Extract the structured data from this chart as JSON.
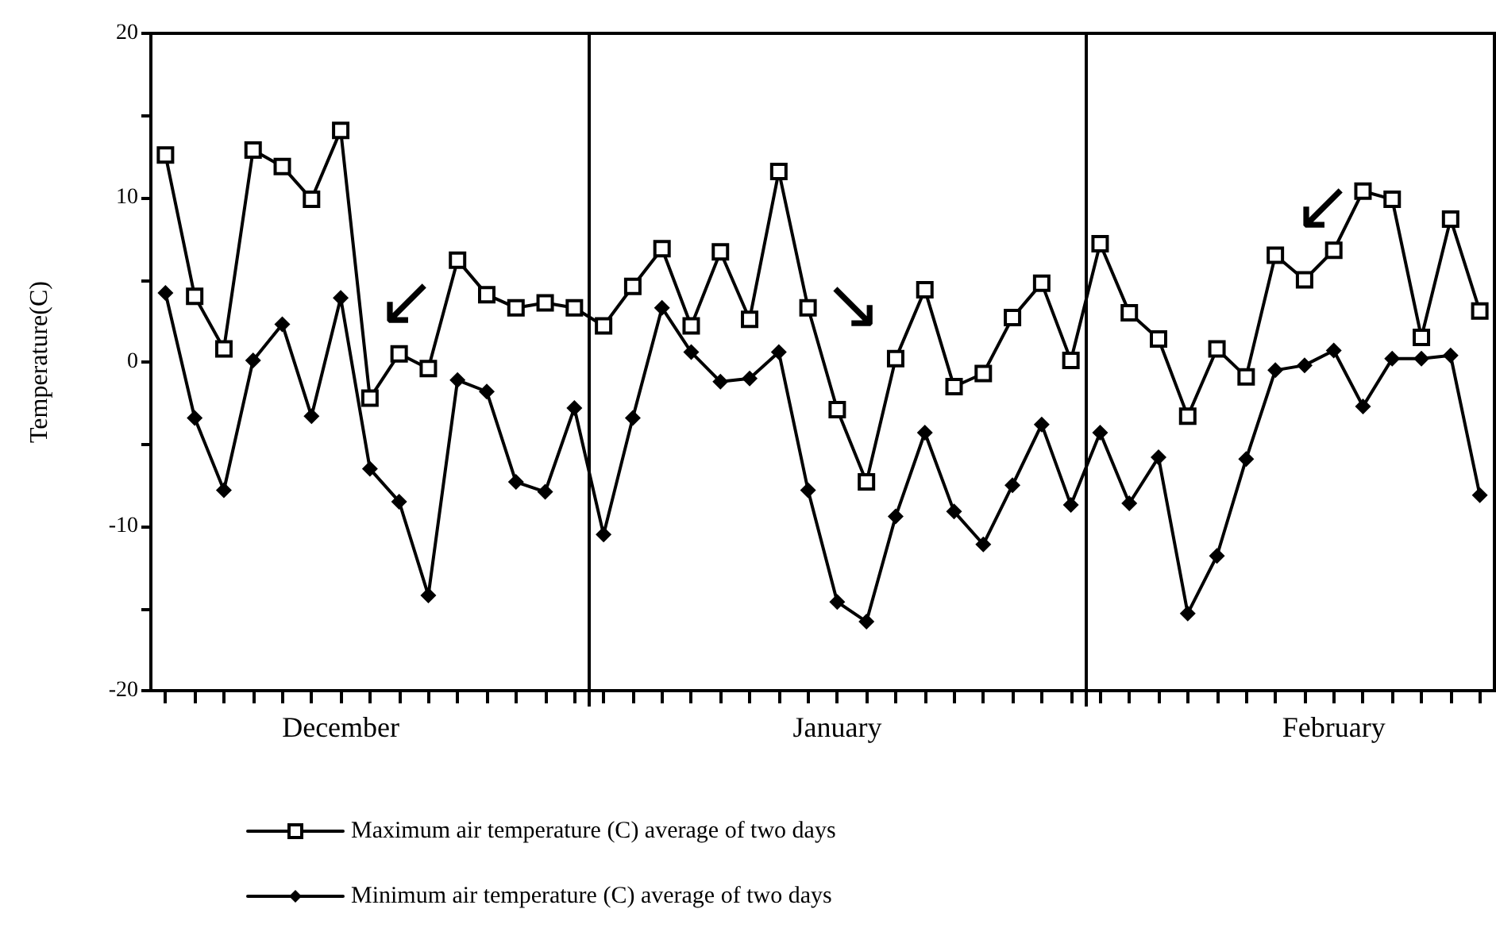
{
  "chart_data": {
    "type": "line",
    "ylabel": "Temperature(C)",
    "categories": [
      null,
      null,
      null,
      null,
      null,
      null,
      "December",
      null,
      null,
      null,
      null,
      null,
      null,
      null,
      null,
      null,
      null,
      null,
      null,
      null,
      null,
      null,
      null,
      "January",
      null,
      null,
      null,
      null,
      null,
      null,
      null,
      null,
      null,
      null,
      null,
      null,
      null,
      null,
      null,
      null,
      "February",
      null,
      null,
      null,
      null,
      null
    ],
    "ylim": [
      -20,
      20
    ],
    "yticks": [
      -20,
      {
        "value": -15,
        "label": null
      },
      -10,
      {
        "value": -5,
        "label": null
      },
      0,
      {
        "value": 5,
        "label": null
      },
      10,
      {
        "value": 15,
        "label": null
      },
      20
    ],
    "series": [
      {
        "name": "Maximum air temperature (C) average of two days",
        "color": "#000000",
        "marker": "square",
        "values": [
          12.6,
          4.0,
          0.8,
          12.9,
          11.9,
          9.9,
          14.1,
          -2.2,
          0.5,
          -0.4,
          6.2,
          4.1,
          3.3,
          3.6,
          3.3,
          2.2,
          4.6,
          6.9,
          2.2,
          6.7,
          2.6,
          11.6,
          3.3,
          -2.9,
          -7.3,
          0.2,
          4.4,
          -1.5,
          -0.7,
          2.7,
          4.8,
          0.1,
          7.2,
          3.0,
          1.4,
          -3.3,
          0.8,
          -0.9,
          6.5,
          5.0,
          6.8,
          10.4,
          9.9,
          1.5,
          8.7,
          3.1
        ]
      },
      {
        "name": "Minimum air temperature (C) average of two days",
        "color": "#000000",
        "marker": "diamond",
        "values": [
          4.2,
          -3.4,
          -7.8,
          0.1,
          2.3,
          -3.3,
          3.9,
          -6.5,
          -8.5,
          -14.2,
          -1.1,
          -1.8,
          -7.3,
          -7.9,
          -2.8,
          -10.5,
          -3.4,
          3.3,
          0.6,
          -1.2,
          -1.0,
          0.6,
          -7.8,
          -14.6,
          -15.8,
          -9.4,
          -4.3,
          -9.1,
          -11.1,
          -7.5,
          -3.8,
          -8.7,
          -4.3,
          -8.6,
          -5.8,
          -15.3,
          -11.8,
          -5.9,
          -0.5,
          -0.2,
          0.7,
          -2.7,
          0.2,
          0.2,
          0.4,
          -8.1
        ]
      }
    ],
    "annotations": [
      "↙",
      "↘",
      "↙"
    ],
    "grid": false,
    "legend": "bottom left",
    "line_style": "solid"
  }
}
